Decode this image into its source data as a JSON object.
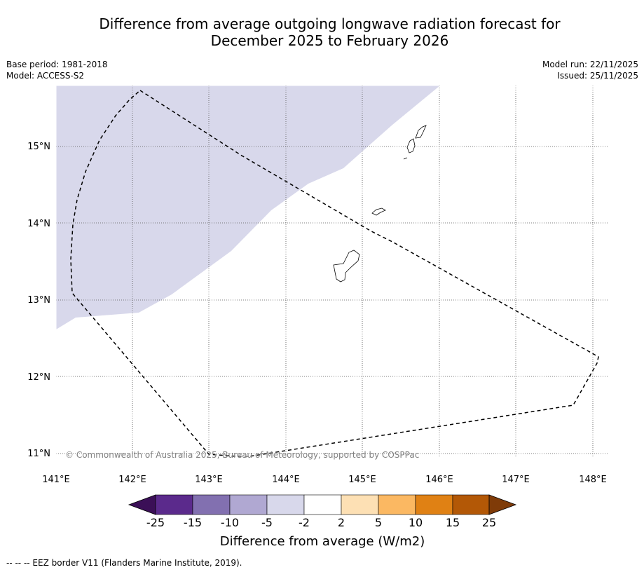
{
  "title_line1": "Difference from average outgoing longwave radiation forecast for",
  "title_line2": "December 2025 to February 2026",
  "meta": {
    "base_period": "Base period: 1981-2018",
    "model": "Model: ACCESS-S2",
    "model_run": "Model run: 22/11/2025",
    "issued": "Issued: 25/11/2025"
  },
  "axes": {
    "lat_labels": [
      "15°N",
      "14°N",
      "13°N",
      "12°N",
      "11°N"
    ],
    "lon_labels": [
      "141°E",
      "142°E",
      "143°E",
      "144°E",
      "145°E",
      "146°E",
      "147°E",
      "148°E"
    ]
  },
  "copyright": "© Commonwealth of Australia 2025, Bureau of Meteorology, supported by COSPPac",
  "colorbar": {
    "ticks": [
      "-25",
      "-15",
      "-10",
      "-5",
      "-2",
      "2",
      "5",
      "10",
      "15",
      "25"
    ],
    "colors": [
      "#3b0f57",
      "#5b2a8c",
      "#8270b0",
      "#b0a8d2",
      "#d8d8eb",
      "#ffffff",
      "#fde0b4",
      "#fbb862",
      "#e08114",
      "#b35806",
      "#7f3b08"
    ],
    "label": "Difference from average (W/m2)"
  },
  "shading_color": "#d8d8eb",
  "footer": "--  --  -- EEZ border V11 (Flanders Marine Institute, 2019)."
}
